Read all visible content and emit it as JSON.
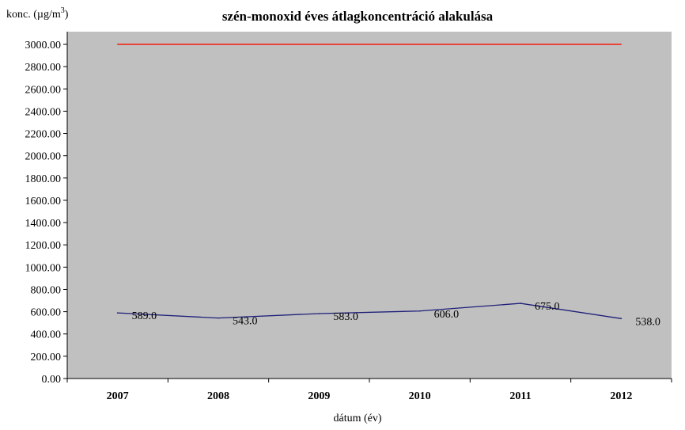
{
  "chart_data": {
    "type": "line",
    "title": "szén-monoxid  éves átlagkoncentráció alakulása",
    "ylabel": "konc. (µg/m",
    "ylabel_sup": "3",
    "ylabel_close": ")",
    "xlabel": "dátum (év)",
    "categories": [
      "2007",
      "2008",
      "2009",
      "2010",
      "2011",
      "2012"
    ],
    "ylim": [
      0,
      3000
    ],
    "y_ticks": [
      "0.00",
      "200.00",
      "400.00",
      "600.00",
      "800.00",
      "1000.00",
      "1200.00",
      "1400.00",
      "1600.00",
      "1800.00",
      "2000.00",
      "2200.00",
      "2400.00",
      "2600.00",
      "2800.00",
      "3000.00"
    ],
    "grid": false,
    "plot_background": "#c0c0c0",
    "series": [
      {
        "color": "#1f1f7a",
        "values": [
          589.0,
          543.0,
          583.0,
          606.0,
          675.0,
          538.0
        ],
        "labels": [
          "589.0",
          "543.0",
          "583.0",
          "606.0",
          "675.0",
          "538.0"
        ]
      },
      {
        "color": "#e8443a",
        "values": [
          3000,
          3000,
          3000,
          3000,
          3000,
          3000
        ]
      }
    ]
  }
}
